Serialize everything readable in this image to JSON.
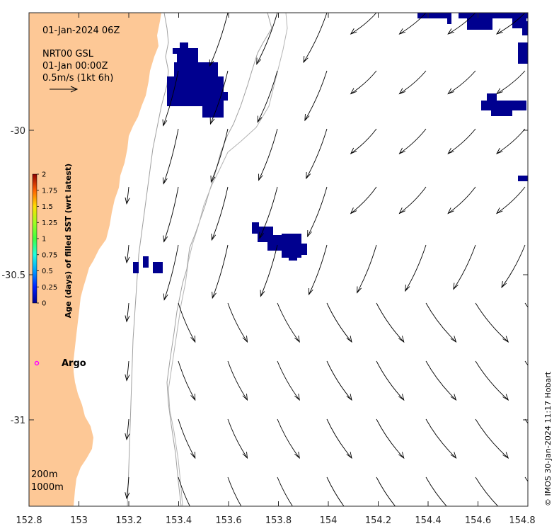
{
  "header": {
    "datetime": "01-Jan-2024 06Z",
    "product": "NRT00 GSL",
    "product_time": "01-Jan 00:00Z",
    "scale_label": "0.5m/s (1kt 6h)"
  },
  "axes": {
    "x_ticks": [
      "152.8",
      "153",
      "153.2",
      "153.4",
      "153.6",
      "153.8",
      "154",
      "154.2",
      "154.4",
      "154.6",
      "154.8"
    ],
    "y_ticks": [
      "-30",
      "-30.5",
      "-31"
    ]
  },
  "colorbar": {
    "title": "Age (days) of filled SST (wrt latest)",
    "ticks": [
      "2",
      "1.75",
      "1.5",
      "1.25",
      "1",
      "0.75",
      "0.5",
      "0.25",
      "0"
    ]
  },
  "legend": {
    "argo_label": "Argo",
    "isobath_200": "200m",
    "isobath_1000": "1000m"
  },
  "credit": "© IMOS 30-Jan-2024 11:17 Hobart",
  "colors": {
    "land": "#fdc896",
    "sst_patch": "#00008f",
    "argo": "#ff00ff",
    "isobath": "#a0a0a0"
  }
}
